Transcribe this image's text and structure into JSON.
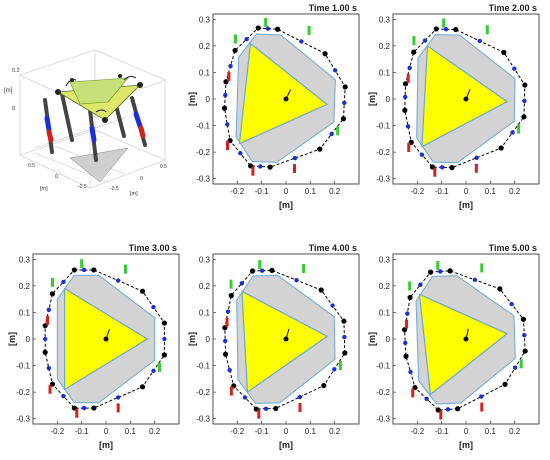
{
  "iso_view": {
    "axis_labels": {
      "x": "[m]",
      "y": "[m]",
      "z": "[m]"
    },
    "z_ticks": [
      "0.2",
      "0"
    ],
    "x_ticks": [
      "-0.5",
      "0",
      "0.5"
    ],
    "y_ticks": [
      "0.5",
      "0",
      "-0.5"
    ]
  },
  "plots": [
    {
      "time_label": "Time 1.00 s",
      "xlabel": "[m]",
      "ylabel": "[m]"
    },
    {
      "time_label": "Time 2.00 s",
      "xlabel": "[m]",
      "ylabel": "[m]"
    },
    {
      "time_label": "Time 3.00 s",
      "xlabel": "[m]",
      "ylabel": "[m]"
    },
    {
      "time_label": "Time 4.00 s",
      "xlabel": "[m]",
      "ylabel": "[m]"
    },
    {
      "time_label": "Time 5.00 s",
      "xlabel": "[m]",
      "ylabel": "[m]"
    }
  ],
  "axes": {
    "x_ticks": [
      -0.2,
      -0.1,
      0,
      0.1,
      0.2
    ],
    "y_ticks": [
      0.3,
      0.2,
      0.1,
      0,
      -0.1,
      -0.2,
      -0.3
    ],
    "xlim": [
      -0.3,
      0.3
    ],
    "ylim": [
      -0.32,
      0.32
    ]
  },
  "colors": {
    "platform": "#ffff00",
    "base": "#d3d3d3",
    "edge": "#6aa8d8",
    "chain": "#000000",
    "actuator_blue": "#1c2fd6",
    "marker_green": "#33cc33",
    "marker_red": "#d62020"
  }
}
